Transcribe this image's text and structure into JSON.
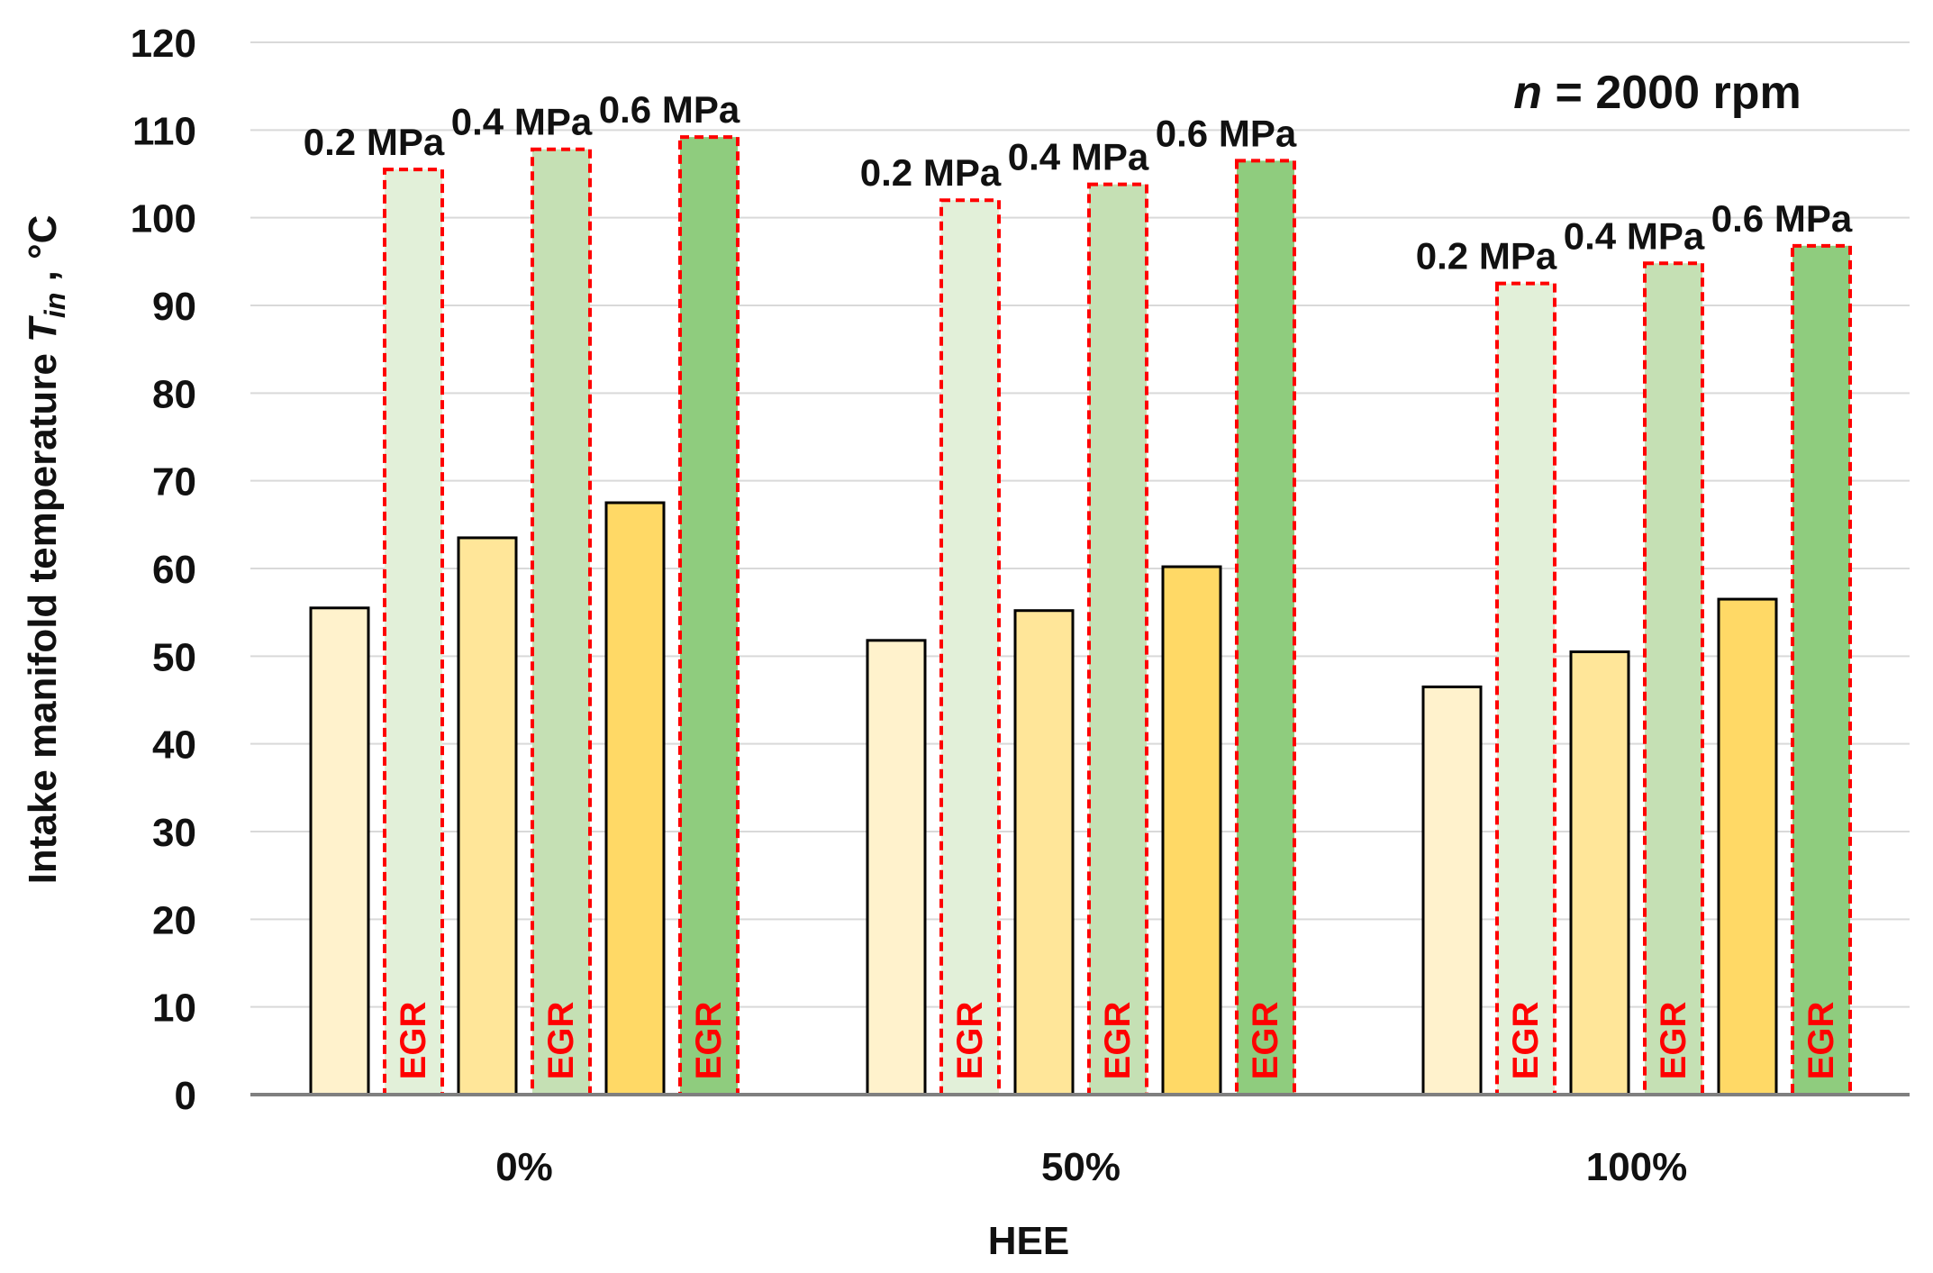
{
  "chart_data": {
    "type": "bar",
    "title": "",
    "xlabel": "HEE",
    "ylabel_main": "Intake manifold temperature ",
    "ylabel_symbol": "T",
    "ylabel_subscript": "in",
    "ylabel_unit": " , °C",
    "ylim": [
      0,
      120
    ],
    "ytick_step": 10,
    "grid": true,
    "categories": [
      "0%",
      "50%",
      "100%"
    ],
    "series": [
      {
        "name": "0.2 MPa",
        "egr": false,
        "color": "#fff2cc",
        "values": [
          55.5,
          51.8,
          46.5
        ]
      },
      {
        "name": "0.2 MPa",
        "egr": true,
        "color": "#e2f0d9",
        "values": [
          105.5,
          102,
          92.5
        ]
      },
      {
        "name": "0.4 MPa",
        "egr": false,
        "color": "#ffe699",
        "values": [
          63.5,
          55.2,
          50.5
        ]
      },
      {
        "name": "0.4 MPa",
        "egr": true,
        "color": "#c5e0b4",
        "values": [
          107.8,
          103.8,
          94.8
        ]
      },
      {
        "name": "0.6 MPa",
        "egr": false,
        "color": "#ffd966",
        "values": [
          67.5,
          60.2,
          56.5
        ]
      },
      {
        "name": "0.6 MPa",
        "egr": true,
        "color": "#8fcc7e",
        "values": [
          109.2,
          106.5,
          96.8
        ]
      }
    ],
    "egr_label": "EGR",
    "annotation": {
      "var": "n",
      "text": " = 2000 rpm"
    },
    "colors": {
      "egr_outline": "#ff0000",
      "bar_outline": "#000000",
      "grid": "#d9d9d9",
      "axis": "#7f7f7f"
    }
  }
}
